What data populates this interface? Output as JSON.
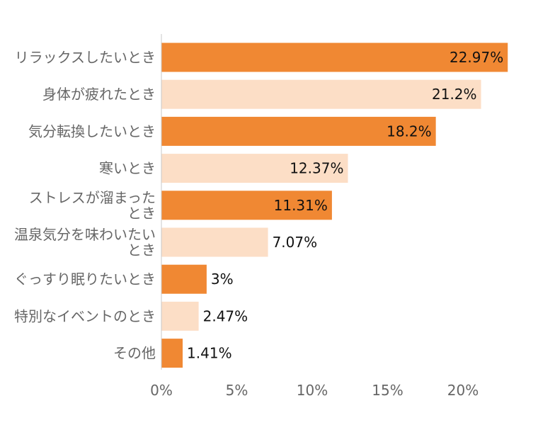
{
  "chart_data": {
    "type": "bar",
    "orientation": "horizontal",
    "categories": [
      [
        "リラックスしたいとき"
      ],
      [
        "身体が疲れたとき"
      ],
      [
        "気分転換したいとき"
      ],
      [
        "寒いとき"
      ],
      [
        "ストレスが溜まった",
        "とき"
      ],
      [
        "温泉気分を味わいたい",
        "とき"
      ],
      [
        "ぐっすり眠りたいとき"
      ],
      [
        "特別なイベントのとき"
      ],
      [
        "その他"
      ]
    ],
    "values": [
      22.97,
      21.2,
      18.2,
      12.37,
      11.31,
      7.07,
      3,
      2.47,
      1.41
    ],
    "value_labels": [
      "22.97%",
      "21.2%",
      "18.2%",
      "12.37%",
      "11.31%",
      "7.07%",
      "3%",
      "2.47%",
      "1.41%"
    ],
    "xlim": [
      0,
      23.5
    ],
    "x_ticks": [
      0,
      5,
      10,
      15,
      20
    ],
    "x_tick_labels": [
      "0%",
      "5%",
      "10%",
      "15%",
      "20%"
    ],
    "grid": false,
    "colors": {
      "bar_primary": "#F08833",
      "bar_alternate": "#FCDEC6",
      "axis_line": "#C8C8C8",
      "label_text": "#666666",
      "value_text": "#111111"
    }
  }
}
